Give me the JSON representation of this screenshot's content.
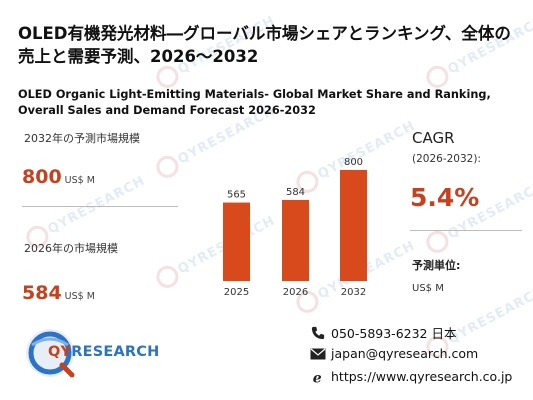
{
  "title_ja": "OLED有機発光材料―グローバル市場シェアとランキング、全体の売上と需要予測、2026～2032",
  "title_en": "OLED Organic Light-Emitting Materials- Global Market Share and Ranking, Overall Sales and Demand Forecast 2026-2032",
  "metric_2032": {
    "label": "2032年の予測市場規模",
    "value": "800",
    "unit": "US$ M"
  },
  "metric_2026": {
    "label": "2026年の市場規模",
    "value": "584",
    "unit": "US$ M"
  },
  "cagr": {
    "label": "CAGR",
    "period": "(2026-2032):",
    "value": "5.4%"
  },
  "unit": {
    "label": "予測単位:",
    "value": "US$ M"
  },
  "logo": {
    "brand_q": "QY",
    "brand_rest": "RESEARCH"
  },
  "contact": {
    "phone": "050-5893-6232 日本",
    "email": "japan@qyresearch.com",
    "web": "https://www.qyresearch.co.jp"
  },
  "watermark": "QYRESEARCH",
  "colors": {
    "accent": "#c8401c",
    "brand_blue": "#2a73c6",
    "bar": "#d84a1b"
  },
  "chart_data": {
    "type": "bar",
    "categories": [
      "2025",
      "2026",
      "2032"
    ],
    "values": [
      565,
      584,
      800
    ],
    "title": "",
    "xlabel": "",
    "ylabel": "",
    "ylim": [
      0,
      850
    ],
    "grid": false,
    "legend": "none"
  }
}
